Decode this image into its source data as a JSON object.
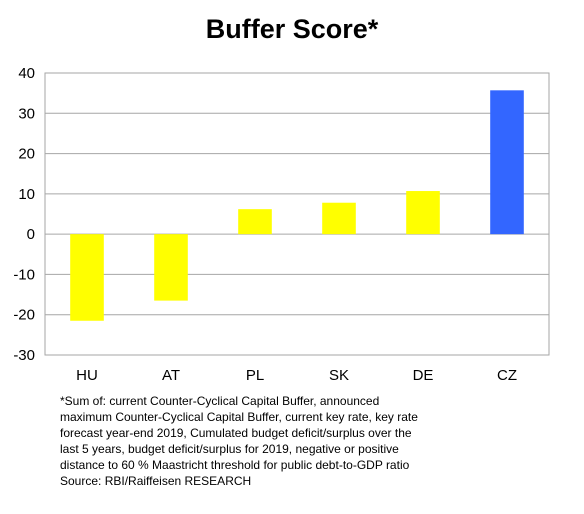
{
  "chart_data": {
    "type": "bar",
    "title": "Buffer Score*",
    "categories": [
      "HU",
      "AT",
      "PL",
      "SK",
      "DE",
      "CZ"
    ],
    "values": [
      -21.5,
      -16.5,
      6.2,
      7.8,
      10.7,
      35.7
    ],
    "ylim": [
      -30,
      40
    ],
    "yticks": [
      40,
      30,
      20,
      10,
      0,
      -10,
      -20,
      -30
    ],
    "grid": true,
    "colors": {
      "default": "#ffff00",
      "highlight": "#3366ff",
      "gridline": "#a6a6a6"
    },
    "highlight_category": "CZ"
  },
  "footnote": {
    "lines": [
      "*Sum of: current Counter-Cyclical Capital Buffer, announced",
      "maximum Counter-Cyclical Capital Buffer, current key rate, key rate",
      "forecast year-end 2019, Cumulated budget deficit/surplus over the",
      "last 5 years, budget deficit/surplus for 2019, negative or positive",
      "distance to 60 % Maastricht threshold for public debt-to-GDP ratio",
      "Source: RBI/Raiffeisen RESEARCH"
    ]
  }
}
